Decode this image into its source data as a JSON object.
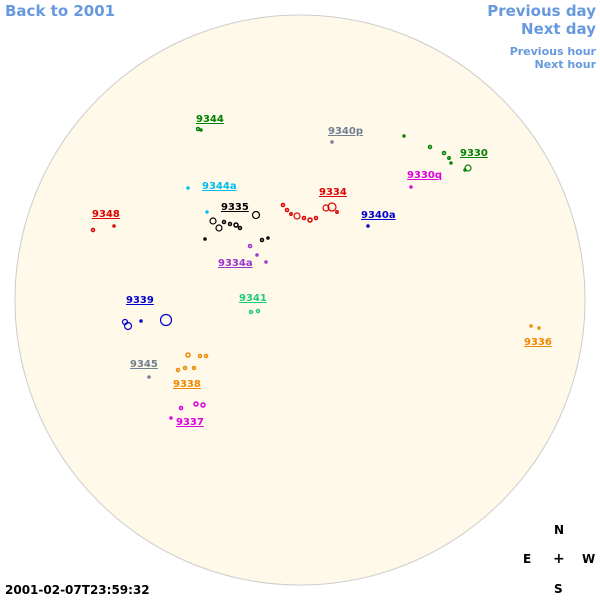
{
  "nav": {
    "back": "Back to 2001",
    "prev_day": "Previous day",
    "next_day": "Next day",
    "prev_hour": "Previous hour",
    "next_hour": "Next hour"
  },
  "timestamp": "2001-02-07T23:59:32",
  "compass": {
    "n": "N",
    "s": "S",
    "e": "E",
    "w": "W",
    "center": "+"
  },
  "colors": {
    "disk_fill": "#fff9ea",
    "disk_stroke": "#cccccc",
    "link": "#6699dd"
  },
  "regions": [
    {
      "label": "9344",
      "color": "#008000"
    },
    {
      "label": "9340p",
      "color": "#708090"
    },
    {
      "label": "9330",
      "color": "#008000"
    },
    {
      "label": "9344a",
      "color": "#00bbee"
    },
    {
      "label": "9334",
      "color": "#dd0000"
    },
    {
      "label": "9330q",
      "color": "#dd00dd"
    },
    {
      "label": "9348",
      "color": "#dd0000"
    },
    {
      "label": "9335",
      "color": "#000000"
    },
    {
      "label": "9340a",
      "color": "#0000cc"
    },
    {
      "label": "9334a",
      "color": "#9933cc"
    },
    {
      "label": "9339",
      "color": "#0000cc"
    },
    {
      "label": "9341",
      "color": "#22cc77"
    },
    {
      "label": "9336",
      "color": "#ee8800"
    },
    {
      "label": "9345",
      "color": "#708090"
    },
    {
      "label": "9338",
      "color": "#ee8800"
    },
    {
      "label": "9337",
      "color": "#dd00dd"
    }
  ]
}
